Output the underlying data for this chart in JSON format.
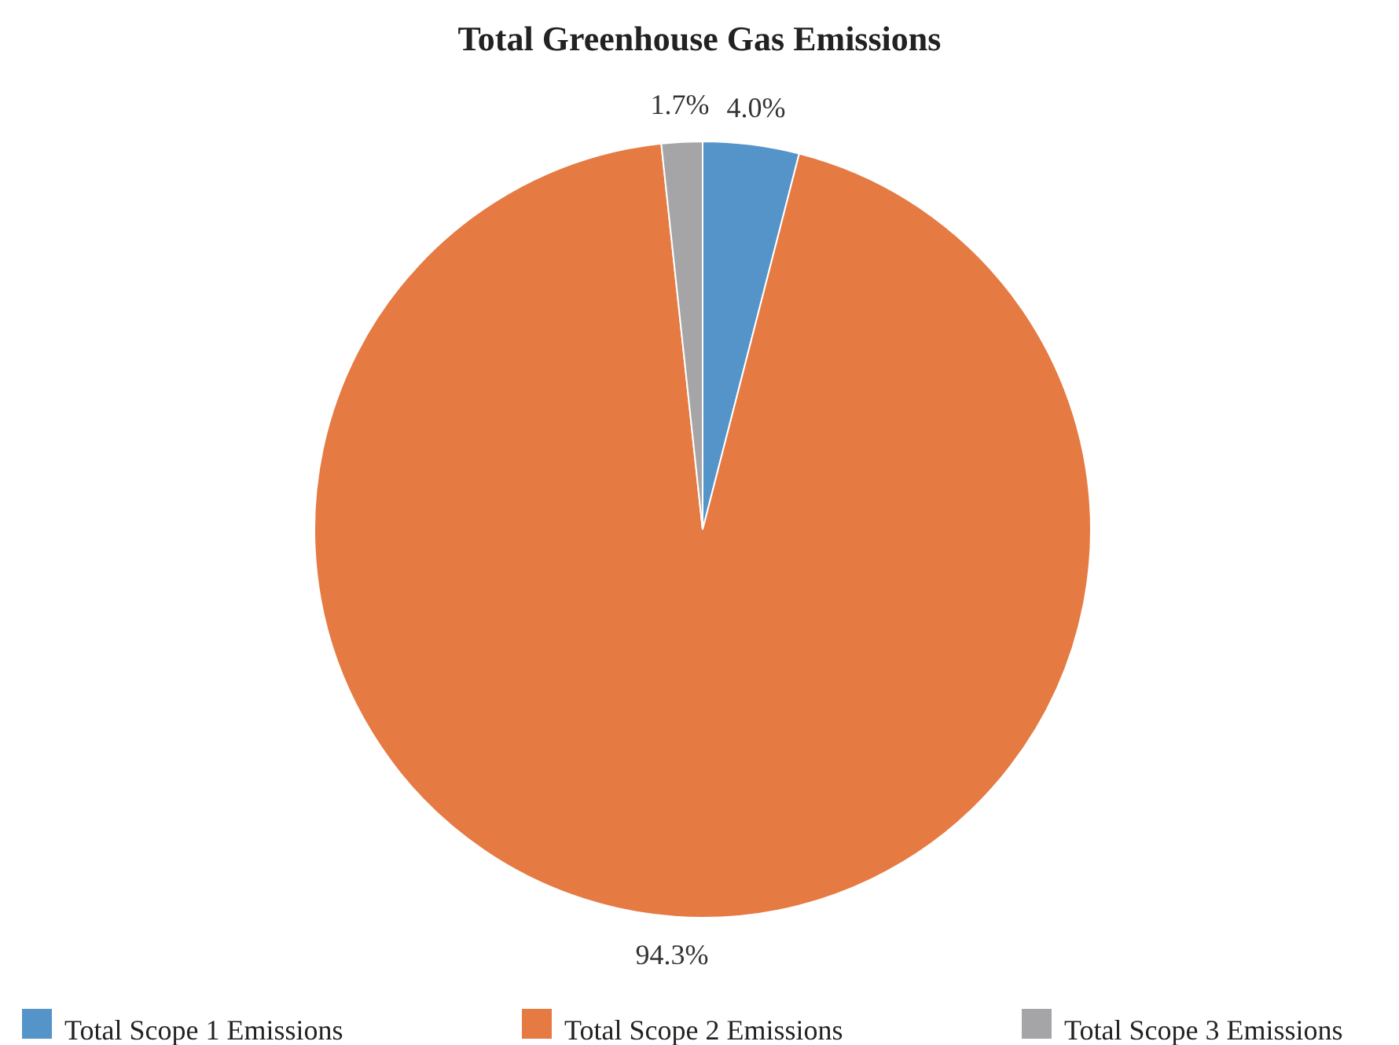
{
  "chart_data": {
    "type": "pie",
    "title": "Total Greenhouse Gas Emissions",
    "categories": [
      "Total Scope 1 Emissions",
      "Total Scope 2 Emissions",
      "Total Scope 3 Emissions"
    ],
    "values": [
      4.0,
      94.3,
      1.7
    ],
    "value_labels": [
      "4.0%",
      "94.3%",
      "1.7%"
    ],
    "colors": [
      "#5594c9",
      "#e57a43",
      "#a5a5a8"
    ],
    "legend": "bottom"
  }
}
